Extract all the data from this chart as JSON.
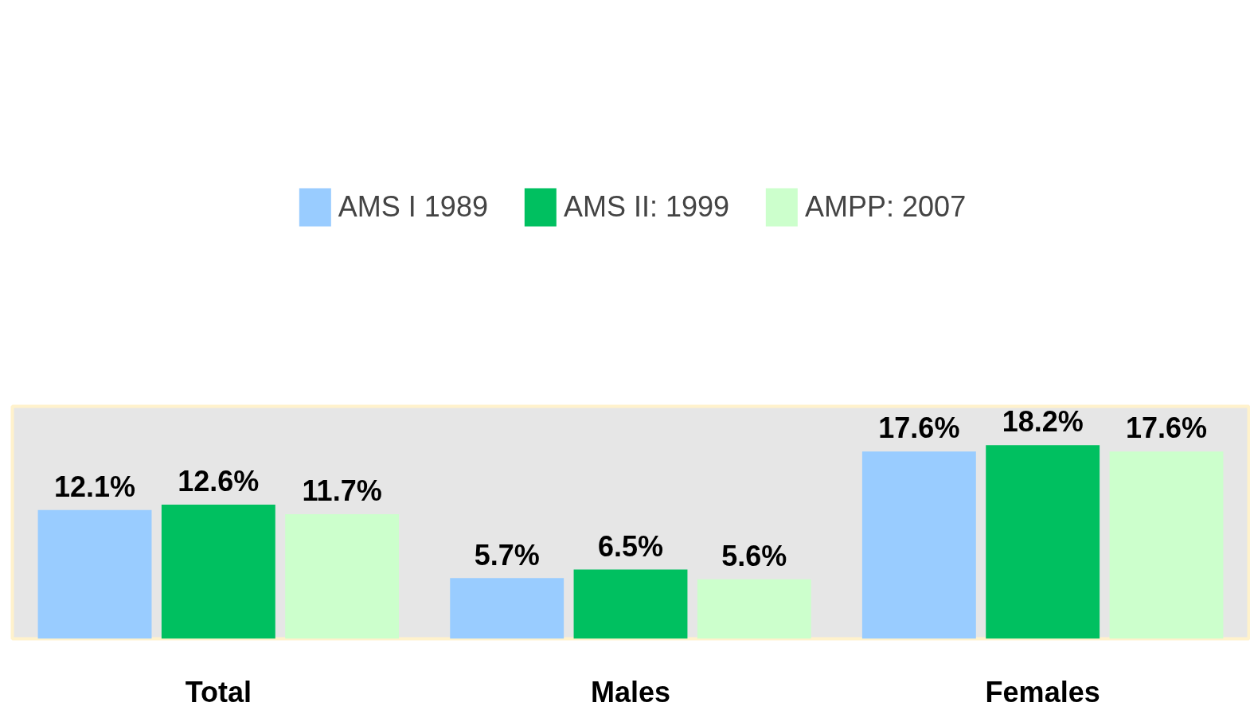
{
  "chart_data": {
    "type": "bar",
    "categories": [
      "Total",
      "Males",
      "Females"
    ],
    "legend": "top",
    "grid": false,
    "series": [
      {
        "name": "AMS I 1989",
        "color": "#99ccff",
        "values": [
          12.1,
          5.7,
          17.6
        ],
        "value_labels": [
          "12.1%",
          "5.7%",
          "17.6%"
        ]
      },
      {
        "name": "AMS II: 1999",
        "color": "#00c060",
        "values": [
          12.6,
          6.5,
          18.2
        ],
        "value_labels": [
          "12.6%",
          "6.5%",
          "18.2%"
        ]
      },
      {
        "name": "AMPP: 2007",
        "color": "#ccffcc",
        "values": [
          11.7,
          5.6,
          17.6
        ],
        "value_labels": [
          "11.7%",
          "5.6%",
          "17.6%"
        ]
      }
    ]
  }
}
